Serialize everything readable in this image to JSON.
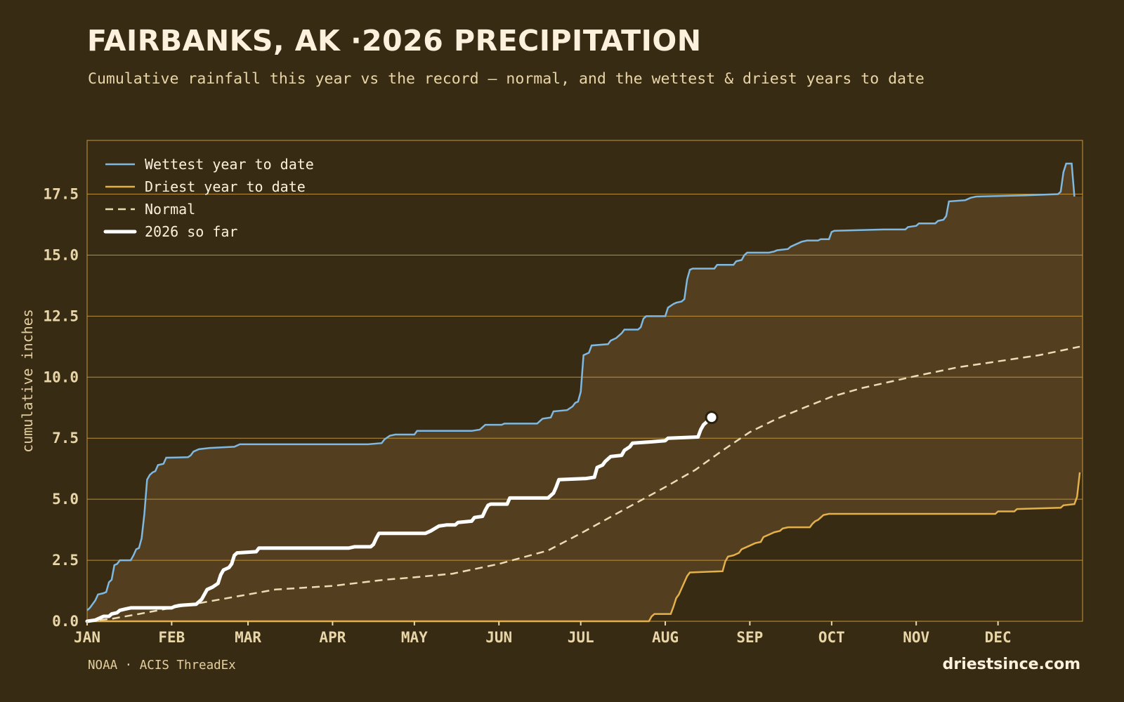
{
  "header": {
    "title": "FAIRBANKS, AK ·2026 PRECIPITATION",
    "subtitle": "Cumulative rainfall this year vs the record — normal, and the wettest & driest years to date"
  },
  "footer": {
    "source": "NOAA · ACIS ThreadEx",
    "brand": "driestsince.com"
  },
  "colors": {
    "background": "#382b13",
    "band_fill": "#533f1f",
    "grid": "#c99a3e",
    "wettest": "#7fb8e0",
    "driest": "#e4b04a",
    "normal": "#ecdcb4",
    "current": "#ffffff",
    "text": "#e8d6a8"
  },
  "chart_data": {
    "type": "line",
    "title": "FAIRBANKS, AK ·2026 PRECIPITATION",
    "ylabel": "cumulative inches",
    "xlabel": "",
    "xlim": [
      1,
      366
    ],
    "ylim": [
      0,
      19.7
    ],
    "x_unit": "day of year",
    "grid": true,
    "legend_position": "top-left",
    "x_ticks": [
      {
        "day": 1,
        "label": "JAN"
      },
      {
        "day": 32,
        "label": "FEB"
      },
      {
        "day": 60,
        "label": "MAR"
      },
      {
        "day": 91,
        "label": "APR"
      },
      {
        "day": 121,
        "label": "MAY"
      },
      {
        "day": 152,
        "label": "JUN"
      },
      {
        "day": 182,
        "label": "JUL"
      },
      {
        "day": 213,
        "label": "AUG"
      },
      {
        "day": 244,
        "label": "SEP"
      },
      {
        "day": 274,
        "label": "OCT"
      },
      {
        "day": 305,
        "label": "NOV"
      },
      {
        "day": 335,
        "label": "DEC"
      }
    ],
    "y_ticks": [
      {
        "value": 0,
        "label": "0.0"
      },
      {
        "value": 2.5,
        "label": "2.5"
      },
      {
        "value": 5,
        "label": "5.0"
      },
      {
        "value": 7.5,
        "label": "7.5"
      },
      {
        "value": 10,
        "label": "10.0"
      },
      {
        "value": 12.5,
        "label": "12.5"
      },
      {
        "value": 15,
        "label": "15.0"
      },
      {
        "value": 17.5,
        "label": "17.5"
      }
    ],
    "series": [
      {
        "name": "Wettest year to date",
        "key": "wettest",
        "points": [
          [
            1,
            0.45
          ],
          [
            2,
            0.55
          ],
          [
            4,
            0.85
          ],
          [
            5,
            1.1
          ],
          [
            7,
            1.15
          ],
          [
            8,
            1.2
          ],
          [
            9,
            1.6
          ],
          [
            10,
            1.7
          ],
          [
            11,
            2.3
          ],
          [
            12,
            2.35
          ],
          [
            13,
            2.5
          ],
          [
            17,
            2.5
          ],
          [
            18,
            2.7
          ],
          [
            19,
            2.95
          ],
          [
            20,
            3.0
          ],
          [
            21,
            3.4
          ],
          [
            22,
            4.4
          ],
          [
            23,
            5.8
          ],
          [
            24,
            6.0
          ],
          [
            25,
            6.1
          ],
          [
            26,
            6.15
          ],
          [
            27,
            6.4
          ],
          [
            29,
            6.45
          ],
          [
            30,
            6.7
          ],
          [
            38,
            6.72
          ],
          [
            39,
            6.8
          ],
          [
            40,
            6.95
          ],
          [
            42,
            7.05
          ],
          [
            46,
            7.1
          ],
          [
            55,
            7.15
          ],
          [
            57,
            7.25
          ],
          [
            104,
            7.25
          ],
          [
            109,
            7.3
          ],
          [
            110,
            7.45
          ],
          [
            112,
            7.6
          ],
          [
            114,
            7.65
          ],
          [
            121,
            7.65
          ],
          [
            122,
            7.8
          ],
          [
            142,
            7.8
          ],
          [
            145,
            7.85
          ],
          [
            147,
            8.05
          ],
          [
            153,
            8.05
          ],
          [
            154,
            8.1
          ],
          [
            166,
            8.1
          ],
          [
            168,
            8.3
          ],
          [
            171,
            8.35
          ],
          [
            172,
            8.6
          ],
          [
            177,
            8.65
          ],
          [
            179,
            8.8
          ],
          [
            180,
            8.95
          ],
          [
            181,
            9.0
          ],
          [
            182,
            9.4
          ],
          [
            183,
            10.9
          ],
          [
            185,
            11.0
          ],
          [
            186,
            11.3
          ],
          [
            192,
            11.35
          ],
          [
            193,
            11.5
          ],
          [
            195,
            11.6
          ],
          [
            197,
            11.8
          ],
          [
            198,
            11.95
          ],
          [
            203,
            11.95
          ],
          [
            204,
            12.05
          ],
          [
            205,
            12.4
          ],
          [
            206,
            12.5
          ],
          [
            213,
            12.5
          ],
          [
            214,
            12.85
          ],
          [
            216,
            13.0
          ],
          [
            217,
            13.05
          ],
          [
            219,
            13.1
          ],
          [
            220,
            13.2
          ],
          [
            221,
            14.0
          ],
          [
            222,
            14.4
          ],
          [
            223,
            14.45
          ],
          [
            231,
            14.45
          ],
          [
            232,
            14.6
          ],
          [
            238,
            14.6
          ],
          [
            239,
            14.75
          ],
          [
            241,
            14.8
          ],
          [
            242,
            15.0
          ],
          [
            243,
            15.1
          ],
          [
            251,
            15.1
          ],
          [
            253,
            15.15
          ],
          [
            254,
            15.2
          ],
          [
            258,
            15.25
          ],
          [
            259,
            15.35
          ],
          [
            261,
            15.45
          ],
          [
            263,
            15.55
          ],
          [
            265,
            15.6
          ],
          [
            269,
            15.6
          ],
          [
            270,
            15.65
          ],
          [
            273,
            15.65
          ],
          [
            274,
            15.95
          ],
          [
            275,
            16.0
          ],
          [
            293,
            16.05
          ],
          [
            301,
            16.05
          ],
          [
            302,
            16.15
          ],
          [
            305,
            16.2
          ],
          [
            306,
            16.3
          ],
          [
            312,
            16.3
          ],
          [
            313,
            16.4
          ],
          [
            315,
            16.45
          ],
          [
            316,
            16.6
          ],
          [
            317,
            17.2
          ],
          [
            323,
            17.25
          ],
          [
            325,
            17.35
          ],
          [
            327,
            17.4
          ],
          [
            345,
            17.45
          ],
          [
            357,
            17.5
          ],
          [
            358,
            17.6
          ],
          [
            359,
            18.4
          ],
          [
            360,
            18.75
          ],
          [
            362,
            18.75
          ],
          [
            363,
            17.4
          ]
        ]
      },
      {
        "name": "Driest year to date",
        "key": "driest",
        "points": [
          [
            1,
            0.0
          ],
          [
            207,
            0.0
          ],
          [
            208,
            0.2
          ],
          [
            209,
            0.3
          ],
          [
            215,
            0.3
          ],
          [
            216,
            0.6
          ],
          [
            217,
            0.95
          ],
          [
            218,
            1.1
          ],
          [
            219,
            1.35
          ],
          [
            220,
            1.6
          ],
          [
            221,
            1.85
          ],
          [
            222,
            2.0
          ],
          [
            234,
            2.05
          ],
          [
            235,
            2.45
          ],
          [
            236,
            2.65
          ],
          [
            238,
            2.7
          ],
          [
            240,
            2.8
          ],
          [
            241,
            2.95
          ],
          [
            242,
            3.0
          ],
          [
            244,
            3.1
          ],
          [
            246,
            3.2
          ],
          [
            248,
            3.25
          ],
          [
            249,
            3.45
          ],
          [
            251,
            3.55
          ],
          [
            253,
            3.65
          ],
          [
            255,
            3.7
          ],
          [
            256,
            3.8
          ],
          [
            258,
            3.85
          ],
          [
            266,
            3.85
          ],
          [
            267,
            4.0
          ],
          [
            268,
            4.1
          ],
          [
            269,
            4.15
          ],
          [
            271,
            4.35
          ],
          [
            273,
            4.4
          ],
          [
            334,
            4.4
          ],
          [
            335,
            4.5
          ],
          [
            341,
            4.5
          ],
          [
            342,
            4.6
          ],
          [
            358,
            4.65
          ],
          [
            359,
            4.75
          ],
          [
            363,
            4.8
          ],
          [
            364,
            5.1
          ],
          [
            365,
            6.1
          ]
        ]
      },
      {
        "name": "Normal",
        "key": "normal",
        "points": [
          [
            1,
            0.0
          ],
          [
            10,
            0.1
          ],
          [
            20,
            0.3
          ],
          [
            32,
            0.55
          ],
          [
            45,
            0.8
          ],
          [
            60,
            1.1
          ],
          [
            70,
            1.3
          ],
          [
            91,
            1.45
          ],
          [
            110,
            1.7
          ],
          [
            121,
            1.8
          ],
          [
            135,
            1.95
          ],
          [
            152,
            2.35
          ],
          [
            170,
            2.9
          ],
          [
            182,
            3.6
          ],
          [
            195,
            4.4
          ],
          [
            213,
            5.5
          ],
          [
            224,
            6.2
          ],
          [
            234,
            7.0
          ],
          [
            244,
            7.75
          ],
          [
            254,
            8.3
          ],
          [
            265,
            8.8
          ],
          [
            274,
            9.2
          ],
          [
            285,
            9.55
          ],
          [
            305,
            10.05
          ],
          [
            320,
            10.4
          ],
          [
            335,
            10.65
          ],
          [
            350,
            10.9
          ],
          [
            365,
            11.25
          ]
        ]
      },
      {
        "name": "2026 so far",
        "key": "current",
        "points": [
          [
            1,
            0.0
          ],
          [
            4,
            0.05
          ],
          [
            6,
            0.15
          ],
          [
            7,
            0.2
          ],
          [
            9,
            0.2
          ],
          [
            10,
            0.3
          ],
          [
            12,
            0.35
          ],
          [
            13,
            0.45
          ],
          [
            15,
            0.5
          ],
          [
            17,
            0.55
          ],
          [
            32,
            0.55
          ],
          [
            33,
            0.6
          ],
          [
            35,
            0.65
          ],
          [
            41,
            0.7
          ],
          [
            42,
            0.8
          ],
          [
            43,
            0.9
          ],
          [
            44,
            1.1
          ],
          [
            45,
            1.3
          ],
          [
            47,
            1.4
          ],
          [
            49,
            1.55
          ],
          [
            50,
            1.9
          ],
          [
            51,
            2.1
          ],
          [
            53,
            2.2
          ],
          [
            54,
            2.35
          ],
          [
            55,
            2.7
          ],
          [
            56,
            2.8
          ],
          [
            63,
            2.85
          ],
          [
            64,
            3.0
          ],
          [
            97,
            3.0
          ],
          [
            99,
            3.05
          ],
          [
            105,
            3.05
          ],
          [
            106,
            3.15
          ],
          [
            107,
            3.4
          ],
          [
            108,
            3.6
          ],
          [
            125,
            3.6
          ],
          [
            127,
            3.7
          ],
          [
            130,
            3.9
          ],
          [
            133,
            3.95
          ],
          [
            136,
            3.95
          ],
          [
            137,
            4.05
          ],
          [
            142,
            4.1
          ],
          [
            143,
            4.25
          ],
          [
            146,
            4.3
          ],
          [
            147,
            4.55
          ],
          [
            148,
            4.75
          ],
          [
            149,
            4.8
          ],
          [
            155,
            4.8
          ],
          [
            156,
            5.05
          ],
          [
            170,
            5.05
          ],
          [
            172,
            5.25
          ],
          [
            173,
            5.5
          ],
          [
            174,
            5.8
          ],
          [
            184,
            5.85
          ],
          [
            187,
            5.9
          ],
          [
            188,
            6.3
          ],
          [
            190,
            6.4
          ],
          [
            191,
            6.55
          ],
          [
            193,
            6.75
          ],
          [
            197,
            6.8
          ],
          [
            198,
            7.0
          ],
          [
            200,
            7.15
          ],
          [
            201,
            7.3
          ],
          [
            208,
            7.35
          ],
          [
            213,
            7.4
          ],
          [
            214,
            7.5
          ],
          [
            225,
            7.55
          ],
          [
            226,
            7.85
          ],
          [
            227,
            8.05
          ],
          [
            230,
            8.35
          ]
        ],
        "marker": [
          230,
          8.35
        ]
      }
    ]
  }
}
